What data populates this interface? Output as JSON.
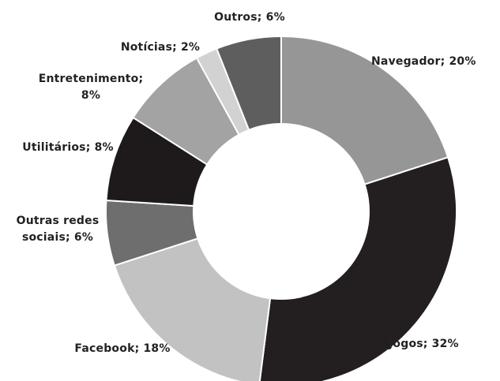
{
  "chart_data": {
    "type": "pie",
    "donut": true,
    "title": "",
    "slices": [
      {
        "category": "Navegador",
        "value": 20,
        "label": "Navegador; 20%",
        "color": "#969696"
      },
      {
        "category": "Jogos",
        "value": 32,
        "label": "Jogos; 32%",
        "color": "#231f20"
      },
      {
        "category": "Facebook",
        "value": 18,
        "label": "Facebook; 18%",
        "color": "#c2c2c2"
      },
      {
        "category": "Outras redes sociais",
        "value": 6,
        "label_lines": [
          "Outras redes",
          "sociais; 6%"
        ],
        "color": "#6e6e6e"
      },
      {
        "category": "Utilitários",
        "value": 8,
        "label": "Utilitários; 8%",
        "color": "#1e1a1b"
      },
      {
        "category": "Entretenimento",
        "value": 8,
        "label_lines": [
          "Entretenimento;",
          "8%"
        ],
        "color": "#a3a3a3"
      },
      {
        "category": "Notícias",
        "value": 2,
        "label": "Notícias; 2%",
        "color": "#d2d2d2"
      },
      {
        "category": "Outros",
        "value": 6,
        "label": "Outros; 6%",
        "color": "#5e5e5e"
      }
    ]
  }
}
